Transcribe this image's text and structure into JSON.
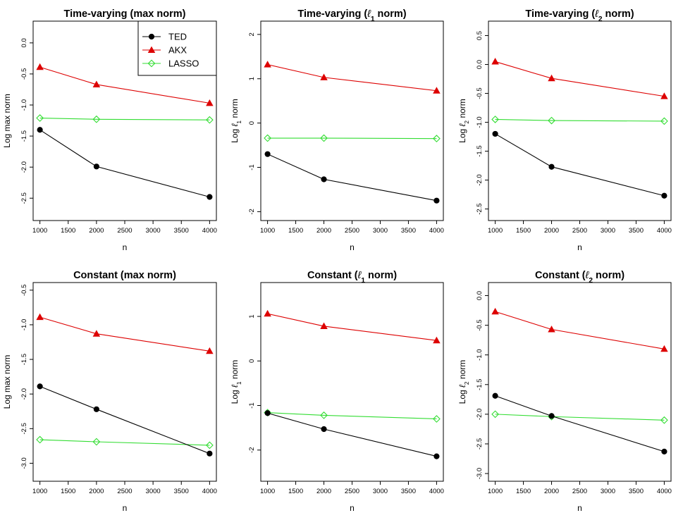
{
  "chart_data": [
    {
      "type": "line",
      "title_main": "Time-varying (max norm)",
      "title_pre": "Time-varying (max norm)",
      "title_sub": "",
      "title_post": "",
      "xlabel": "n",
      "ylabel_pre": "Log max norm",
      "ylabel_sub": "",
      "ylabel_post": "",
      "x": [
        1000,
        2000,
        4000
      ],
      "xticks": [
        1000,
        1500,
        2000,
        2500,
        3000,
        3500,
        4000
      ],
      "xlim": [
        880,
        4120
      ],
      "yticks": [
        -2.5,
        -2.0,
        -1.5,
        -1.0,
        -0.5,
        0.0
      ],
      "ytick_labels": [
        "-2.5",
        "-2.0",
        "-1.5",
        "-1.0",
        "-0.5",
        "0.0"
      ],
      "ylim": [
        -2.86,
        0.35
      ],
      "series": [
        {
          "name": "TED",
          "values": [
            -1.4,
            -1.99,
            -2.48
          ]
        },
        {
          "name": "AKX",
          "values": [
            -0.39,
            -0.67,
            -0.97
          ]
        },
        {
          "name": "LASSO",
          "values": [
            -1.21,
            -1.23,
            -1.24
          ]
        }
      ],
      "legend": "top-right"
    },
    {
      "type": "line",
      "title_pre": "Time-varying (",
      "title_sub": "1",
      "title_post": " norm)",
      "xlabel": "n",
      "ylabel_pre": "Log ",
      "ylabel_sub": "1",
      "ylabel_post": " norm",
      "x": [
        1000,
        2000,
        4000
      ],
      "xticks": [
        1000,
        1500,
        2000,
        2500,
        3000,
        3500,
        4000
      ],
      "xlim": [
        880,
        4120
      ],
      "yticks": [
        -2,
        -1,
        0,
        1,
        2
      ],
      "ytick_labels": [
        "-2",
        "-1",
        "0",
        "1",
        "2"
      ],
      "ylim": [
        -2.2,
        2.3
      ],
      "series": [
        {
          "name": "TED",
          "values": [
            -0.7,
            -1.27,
            -1.75
          ]
        },
        {
          "name": "AKX",
          "values": [
            1.32,
            1.03,
            0.73
          ]
        },
        {
          "name": "LASSO",
          "values": [
            -0.34,
            -0.34,
            -0.35
          ]
        }
      ]
    },
    {
      "type": "line",
      "title_pre": "Time-varying (",
      "title_sub": "2",
      "title_post": " norm)",
      "xlabel": "n",
      "ylabel_pre": "Log ",
      "ylabel_sub": "2",
      "ylabel_post": " norm",
      "x": [
        1000,
        2000,
        4000
      ],
      "xticks": [
        1000,
        1500,
        2000,
        2500,
        3000,
        3500,
        4000
      ],
      "xlim": [
        880,
        4120
      ],
      "yticks": [
        -2.5,
        -2.0,
        -1.5,
        -1.0,
        -0.5,
        0.0,
        0.5
      ],
      "ytick_labels": [
        "-2.5",
        "-2.0",
        "-1.5",
        "-1.0",
        "-0.5",
        "0.0",
        "0.5"
      ],
      "ylim": [
        -2.7,
        0.75
      ],
      "series": [
        {
          "name": "TED",
          "values": [
            -1.2,
            -1.77,
            -2.27
          ]
        },
        {
          "name": "AKX",
          "values": [
            0.05,
            -0.24,
            -0.55
          ]
        },
        {
          "name": "LASSO",
          "values": [
            -0.95,
            -0.97,
            -0.98
          ]
        }
      ]
    },
    {
      "type": "line",
      "title_pre": "Constant (max norm)",
      "title_sub": "",
      "title_post": "",
      "xlabel": "n",
      "ylabel_pre": "Log max norm",
      "ylabel_sub": "",
      "ylabel_post": "",
      "x": [
        1000,
        2000,
        4000
      ],
      "xticks": [
        1000,
        1500,
        2000,
        2500,
        3000,
        3500,
        4000
      ],
      "xlim": [
        880,
        4120
      ],
      "yticks": [
        -3.0,
        -2.5,
        -2.0,
        -1.5,
        -1.0,
        -0.5
      ],
      "ytick_labels": [
        "-3.0",
        "-2.5",
        "-2.0",
        "-1.5",
        "-1.0",
        "-0.5"
      ],
      "ylim": [
        -3.26,
        -0.39
      ],
      "series": [
        {
          "name": "TED",
          "values": [
            -1.89,
            -2.22,
            -2.86
          ]
        },
        {
          "name": "AKX",
          "values": [
            -0.89,
            -1.13,
            -1.38
          ]
        },
        {
          "name": "LASSO",
          "values": [
            -2.66,
            -2.69,
            -2.74
          ]
        }
      ]
    },
    {
      "type": "line",
      "title_pre": "Constant (",
      "title_sub": "1",
      "title_post": " norm)",
      "xlabel": "n",
      "ylabel_pre": "Log ",
      "ylabel_sub": "1",
      "ylabel_post": " norm",
      "x": [
        1000,
        2000,
        4000
      ],
      "xticks": [
        1000,
        1500,
        2000,
        2500,
        3000,
        3500,
        4000
      ],
      "xlim": [
        880,
        4120
      ],
      "yticks": [
        -2,
        -1,
        0,
        1
      ],
      "ytick_labels": [
        "-2",
        "-1",
        "0",
        "1"
      ],
      "ylim": [
        -2.7,
        1.76
      ],
      "series": [
        {
          "name": "TED",
          "values": [
            -1.17,
            -1.53,
            -2.14
          ]
        },
        {
          "name": "AKX",
          "values": [
            1.06,
            0.78,
            0.46
          ]
        },
        {
          "name": "LASSO",
          "values": [
            -1.16,
            -1.22,
            -1.3
          ]
        }
      ]
    },
    {
      "type": "line",
      "title_pre": "Constant (",
      "title_sub": "2",
      "title_post": " norm)",
      "xlabel": "n",
      "ylabel_pre": "Log ",
      "ylabel_sub": "2",
      "ylabel_post": " norm",
      "x": [
        1000,
        2000,
        4000
      ],
      "xticks": [
        1000,
        1500,
        2000,
        2500,
        3000,
        3500,
        4000
      ],
      "xlim": [
        880,
        4120
      ],
      "yticks": [
        -3.0,
        -2.5,
        -2.0,
        -1.5,
        -1.0,
        -0.5,
        0.0
      ],
      "ytick_labels": [
        "-3.0",
        "-2.5",
        "-2.0",
        "-1.5",
        "-1.0",
        "-0.5",
        "0.0"
      ],
      "ylim": [
        -3.13,
        0.22
      ],
      "series": [
        {
          "name": "TED",
          "values": [
            -1.69,
            -2.03,
            -2.63
          ]
        },
        {
          "name": "AKX",
          "values": [
            -0.27,
            -0.57,
            -0.9
          ]
        },
        {
          "name": "LASSO",
          "values": [
            -2.0,
            -2.04,
            -2.1
          ]
        }
      ]
    }
  ],
  "legend": {
    "entries": [
      {
        "label": "TED",
        "color": "#000000",
        "marker": "circle"
      },
      {
        "label": "AKX",
        "color": "#dd0000",
        "marker": "triangle"
      },
      {
        "label": "LASSO",
        "color": "#33dd33",
        "marker": "diamond"
      }
    ]
  },
  "ell_glyph": "ℓ"
}
